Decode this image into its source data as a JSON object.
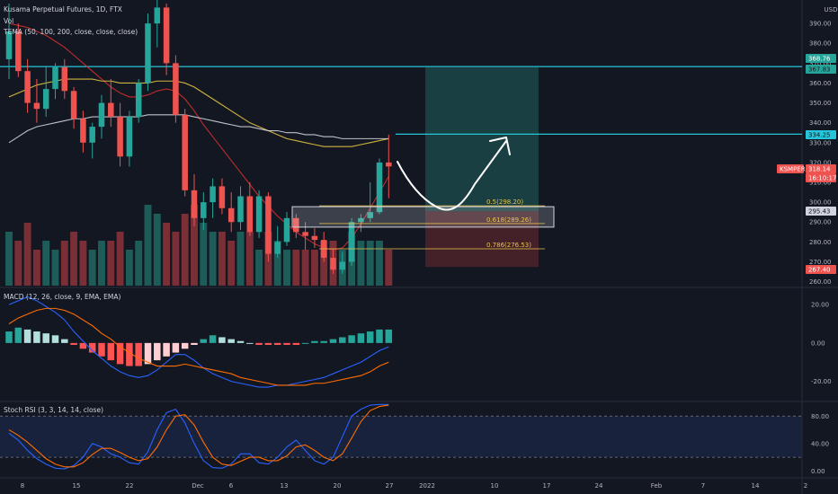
{
  "header": {
    "symbol_line": "Kusama Perpetual Futures, 1D, FTX",
    "vol_label": "Vol",
    "tema_label": "TEMA (50, 100, 200, close, close, close)",
    "macd_label": "MACD (12, 26, close, 9, EMA, EMA)",
    "stoch_label": "Stoch RSI (3, 3, 14, 14, close)"
  },
  "price_axis": {
    "currency": "USD",
    "ticks": [
      "390.00",
      "380.00",
      "370.00",
      "360.00",
      "350.00",
      "340.00",
      "330.00",
      "320.00",
      "310.00",
      "300.00",
      "290.00",
      "280.00",
      "270.00",
      "260.00"
    ]
  },
  "macd_axis": {
    "ticks": [
      "20.00",
      "0.00",
      "-20.00"
    ]
  },
  "stoch_axis": {
    "ticks": [
      "80.00",
      "40.00",
      "0.00"
    ]
  },
  "time_axis": {
    "labels": [
      "8",
      "15",
      "22",
      "Dec",
      "6",
      "13",
      "20",
      "27",
      "2022",
      "10",
      "17",
      "24",
      "Feb",
      "7",
      "14",
      "2"
    ]
  },
  "price_tags": [
    {
      "label": "368.76",
      "color": "#26a69a",
      "text_color": "#ffffff"
    },
    {
      "label": "367.83",
      "color": "#26a69a",
      "text_color": "#131722"
    },
    {
      "label": "334.25",
      "color": "#26c6da",
      "text_color": "#131722"
    },
    {
      "label": "KSMPERP",
      "color": "#ef5350",
      "text_color": "#ffffff"
    },
    {
      "label": "318.14",
      "color": "#ef5350",
      "text_color": "#ffffff"
    },
    {
      "label": "16:10:17",
      "color": "#ef5350",
      "text_color": "#ffffff"
    },
    {
      "label": "295.43",
      "color": "#d1d4dc",
      "text_color": "#131722"
    },
    {
      "label": "267.40",
      "color": "#ef5350",
      "text_color": "#ffffff"
    }
  ],
  "fib_labels": [
    "0.5(298.20)",
    "0.618(289.26)",
    "0.786(276.53)"
  ],
  "colors": {
    "up": "#26a69a",
    "down": "#ef5350",
    "cyan": "#26c6da",
    "fib": "#e9c34b"
  },
  "chart_data": [
    {
      "type": "candlestick",
      "title": "Kusama Perpetual Futures, 1D, FTX",
      "ylim": [
        258,
        400
      ],
      "candles": [
        {
          "o": 372,
          "h": 400,
          "l": 362,
          "c": 386
        },
        {
          "o": 386,
          "h": 390,
          "l": 363,
          "c": 366
        },
        {
          "o": 366,
          "h": 372,
          "l": 345,
          "c": 350
        },
        {
          "o": 350,
          "h": 362,
          "l": 340,
          "c": 347
        },
        {
          "o": 347,
          "h": 368,
          "l": 343,
          "c": 357
        },
        {
          "o": 357,
          "h": 370,
          "l": 352,
          "c": 368
        },
        {
          "o": 368,
          "h": 372,
          "l": 352,
          "c": 356
        },
        {
          "o": 356,
          "h": 358,
          "l": 337,
          "c": 342
        },
        {
          "o": 342,
          "h": 346,
          "l": 325,
          "c": 330
        },
        {
          "o": 330,
          "h": 340,
          "l": 322,
          "c": 338
        },
        {
          "o": 338,
          "h": 354,
          "l": 332,
          "c": 350
        },
        {
          "o": 350,
          "h": 362,
          "l": 338,
          "c": 343
        },
        {
          "o": 343,
          "h": 350,
          "l": 318,
          "c": 323
        },
        {
          "o": 323,
          "h": 346,
          "l": 318,
          "c": 343
        },
        {
          "o": 343,
          "h": 362,
          "l": 340,
          "c": 360
        },
        {
          "o": 360,
          "h": 395,
          "l": 356,
          "c": 390
        },
        {
          "o": 390,
          "h": 402,
          "l": 378,
          "c": 398
        },
        {
          "o": 398,
          "h": 400,
          "l": 364,
          "c": 370
        },
        {
          "o": 370,
          "h": 374,
          "l": 340,
          "c": 344
        },
        {
          "o": 344,
          "h": 347,
          "l": 303,
          "c": 306
        },
        {
          "o": 306,
          "h": 314,
          "l": 288,
          "c": 292
        },
        {
          "o": 292,
          "h": 305,
          "l": 286,
          "c": 300
        },
        {
          "o": 300,
          "h": 312,
          "l": 292,
          "c": 308
        },
        {
          "o": 308,
          "h": 312,
          "l": 294,
          "c": 297
        },
        {
          "o": 297,
          "h": 305,
          "l": 285,
          "c": 290
        },
        {
          "o": 290,
          "h": 308,
          "l": 286,
          "c": 303
        },
        {
          "o": 303,
          "h": 310,
          "l": 283,
          "c": 285
        },
        {
          "o": 285,
          "h": 306,
          "l": 282,
          "c": 303
        },
        {
          "o": 303,
          "h": 305,
          "l": 270,
          "c": 274
        },
        {
          "o": 274,
          "h": 288,
          "l": 272,
          "c": 280
        },
        {
          "o": 280,
          "h": 295,
          "l": 278,
          "c": 292
        },
        {
          "o": 292,
          "h": 294,
          "l": 282,
          "c": 285
        },
        {
          "o": 285,
          "h": 290,
          "l": 276,
          "c": 283
        },
        {
          "o": 283,
          "h": 287,
          "l": 277,
          "c": 281
        },
        {
          "o": 281,
          "h": 285,
          "l": 270,
          "c": 272
        },
        {
          "o": 272,
          "h": 276,
          "l": 264,
          "c": 266
        },
        {
          "o": 266,
          "h": 275,
          "l": 264,
          "c": 270
        },
        {
          "o": 270,
          "h": 292,
          "l": 268,
          "c": 290
        },
        {
          "o": 290,
          "h": 294,
          "l": 285,
          "c": 292
        },
        {
          "o": 292,
          "h": 310,
          "l": 290,
          "c": 295
        },
        {
          "o": 295,
          "h": 322,
          "l": 294,
          "c": 320
        },
        {
          "o": 320,
          "h": 334,
          "l": 302,
          "c": 318
        }
      ],
      "volume": [
        6,
        5,
        7,
        4,
        5,
        4,
        5,
        6,
        5,
        4,
        5,
        5,
        6,
        4,
        5,
        9,
        8,
        7,
        6,
        8,
        9,
        7,
        6,
        6,
        5,
        6,
        6,
        4,
        6,
        5,
        4,
        4,
        4,
        4,
        5,
        5,
        4,
        6,
        5,
        5,
        5,
        4
      ],
      "tema_lines": [
        {
          "name": "TEMA 50",
          "color": "#d32f2f",
          "values": [
            390,
            389,
            388,
            386,
            384,
            381,
            378,
            374,
            370,
            366,
            362,
            358,
            355,
            353,
            353,
            354,
            356,
            357,
            356,
            352,
            346,
            339,
            333,
            327,
            321,
            315,
            309,
            303,
            298,
            293,
            289,
            285,
            282,
            279,
            277,
            276,
            277,
            282,
            289,
            297,
            305,
            313
          ]
        },
        {
          "name": "TEMA 100",
          "color": "#e4c441",
          "values": [
            353,
            355,
            357,
            359,
            360,
            361,
            362,
            362,
            362,
            362,
            361,
            361,
            360,
            360,
            360,
            360,
            361,
            361,
            361,
            360,
            358,
            355,
            352,
            349,
            346,
            343,
            340,
            338,
            336,
            334,
            332,
            331,
            330,
            329,
            328,
            328,
            328,
            328,
            329,
            330,
            331,
            332
          ]
        },
        {
          "name": "TEMA 200",
          "color": "#d1d4dc",
          "values": [
            330,
            333,
            336,
            338,
            339,
            340,
            341,
            342,
            342,
            343,
            343,
            343,
            343,
            343,
            343,
            344,
            344,
            344,
            344,
            344,
            343,
            342,
            341,
            340,
            339,
            338,
            338,
            337,
            336,
            336,
            335,
            335,
            334,
            334,
            333,
            333,
            332,
            332,
            332,
            332,
            332,
            332
          ]
        }
      ],
      "horizontal_levels": [
        {
          "value": 368.3,
          "color": "#26c6da"
        },
        {
          "value": 334.25,
          "color": "#26c6da"
        }
      ],
      "fibonacci": [
        {
          "label": "0.5",
          "value": 298.2
        },
        {
          "label": "0.618",
          "value": 289.26
        },
        {
          "label": "0.786",
          "value": 276.53
        }
      ],
      "long_position": {
        "entry": 295.43,
        "target": 367.83,
        "stop": 267.4
      }
    },
    {
      "type": "bar",
      "title": "MACD (12, 26, close, 9, EMA, EMA)",
      "ylim": [
        -30,
        28
      ],
      "histogram": [
        6,
        8,
        7,
        6,
        5,
        4,
        2,
        -1,
        -3,
        -5,
        -7,
        -9,
        -11,
        -12,
        -12,
        -11,
        -9,
        -7,
        -5,
        -3,
        -1,
        2,
        4,
        3,
        2,
        1,
        0,
        -1,
        -1,
        -1,
        -1,
        -1,
        0,
        1,
        1,
        2,
        3,
        4,
        5,
        6,
        7,
        7
      ],
      "macd": [
        20,
        22,
        24,
        22,
        19,
        16,
        12,
        6,
        1,
        -4,
        -8,
        -12,
        -15,
        -17,
        -18,
        -17,
        -14,
        -10,
        -6,
        -6,
        -9,
        -13,
        -16,
        -18,
        -20,
        -21,
        -22,
        -23,
        -23,
        -22,
        -22,
        -21,
        -20,
        -19,
        -18,
        -16,
        -14,
        -12,
        -10,
        -7,
        -4,
        -2
      ],
      "signal": [
        10,
        13,
        15,
        17,
        18,
        18,
        17,
        15,
        12,
        9,
        5,
        2,
        -2,
        -5,
        -8,
        -10,
        -12,
        -12,
        -12,
        -11,
        -12,
        -13,
        -14,
        -15,
        -16,
        -18,
        -19,
        -20,
        -21,
        -22,
        -22,
        -22,
        -22,
        -21,
        -21,
        -20,
        -19,
        -18,
        -17,
        -15,
        -12,
        -10
      ]
    },
    {
      "type": "line",
      "title": "Stoch RSI (3, 3, 14, 14, close)",
      "ylim": [
        -10,
        100
      ],
      "bands": [
        20,
        80
      ],
      "k": [
        55,
        45,
        30,
        18,
        10,
        4,
        3,
        8,
        20,
        40,
        35,
        25,
        20,
        12,
        10,
        28,
        60,
        85,
        90,
        70,
        40,
        15,
        5,
        4,
        10,
        25,
        25,
        12,
        10,
        20,
        35,
        45,
        30,
        15,
        10,
        20,
        50,
        80,
        90,
        96,
        97,
        97
      ],
      "d": [
        60,
        52,
        42,
        30,
        18,
        10,
        6,
        6,
        12,
        24,
        33,
        33,
        27,
        20,
        15,
        18,
        35,
        60,
        80,
        82,
        67,
        42,
        20,
        10,
        8,
        14,
        20,
        20,
        15,
        15,
        22,
        35,
        38,
        30,
        20,
        15,
        25,
        48,
        72,
        88,
        94,
        96
      ]
    }
  ]
}
